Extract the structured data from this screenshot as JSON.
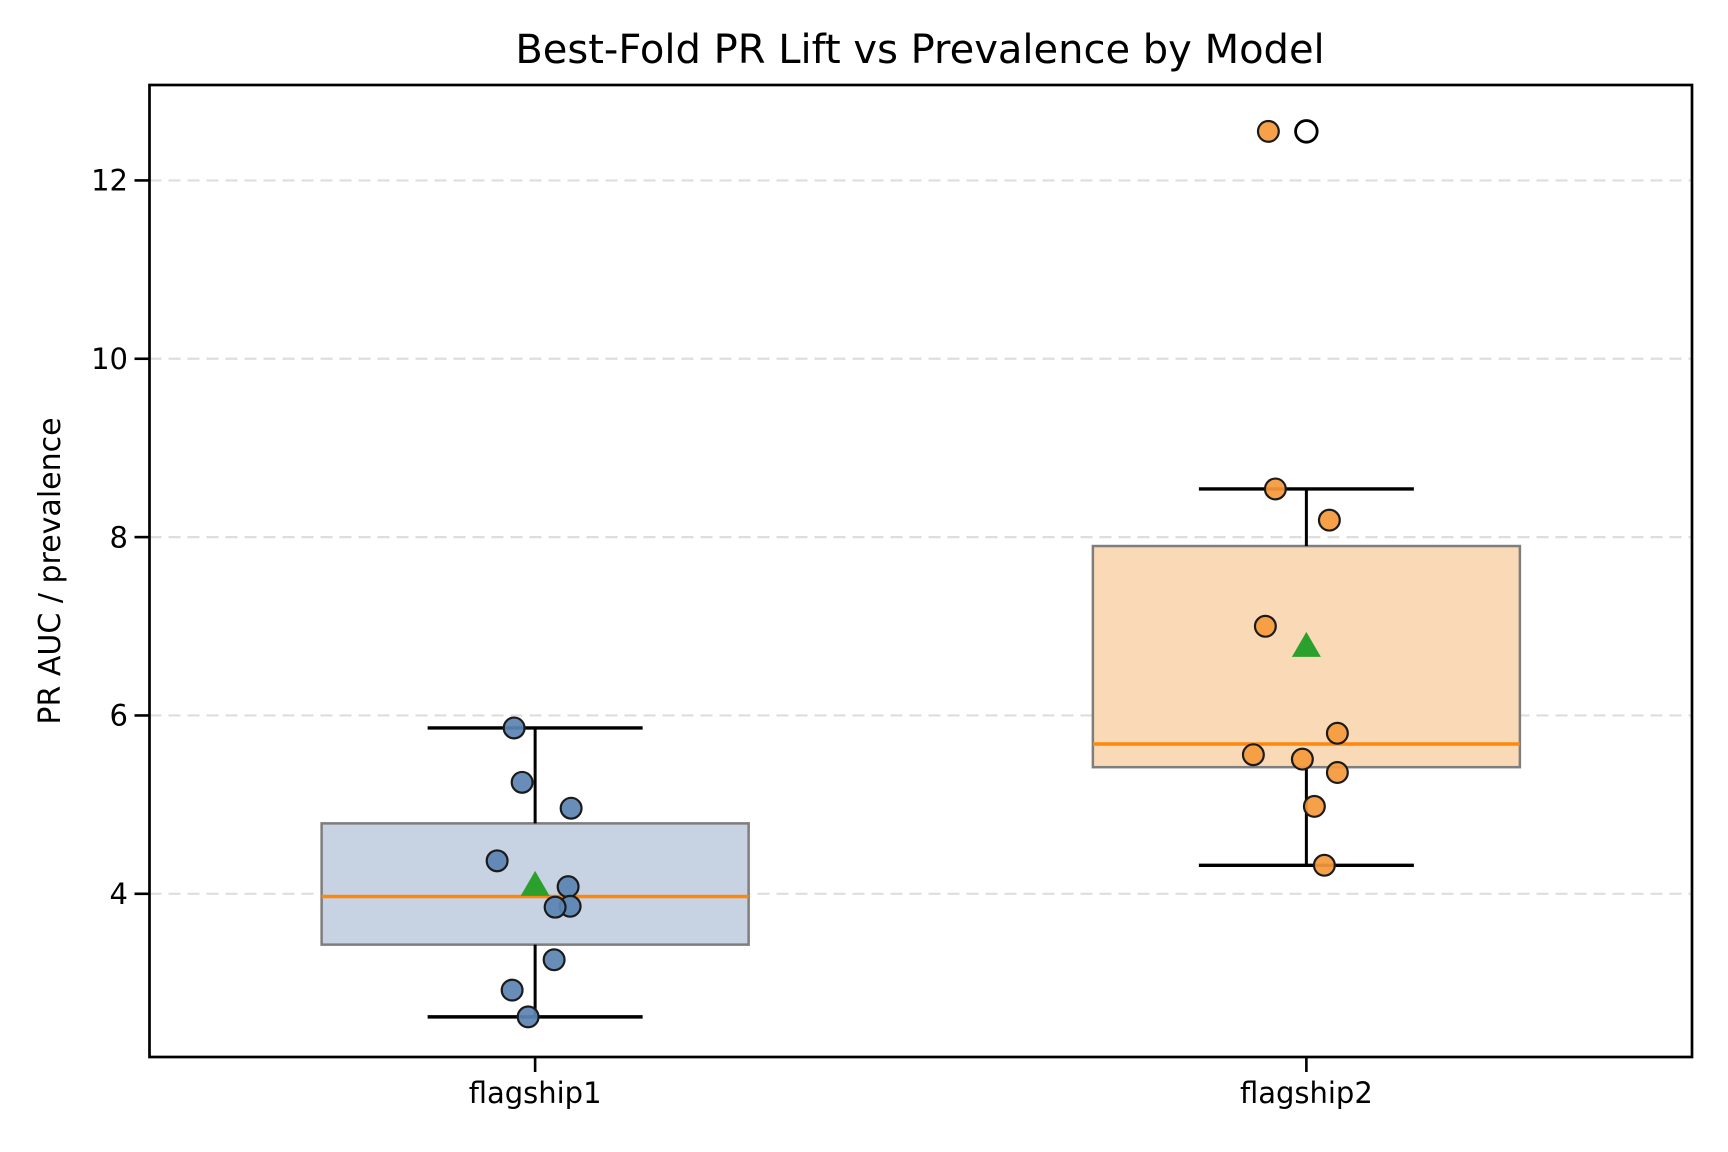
{
  "chart_data": {
    "type": "box",
    "title": "Best-Fold PR Lift vs Prevalence by Model",
    "xlabel": "",
    "ylabel": "PR AUC / prevalence",
    "categories": [
      "flagship1",
      "flagship2"
    ],
    "yticks": [
      4,
      6,
      8,
      10,
      12
    ],
    "ylim": [
      2.17,
      13.07
    ],
    "grid": "horizontal-dashed",
    "legend": "none",
    "series": [
      {
        "name": "flagship1",
        "marker_fill": "#5b84b3",
        "box_fill": "#c7d2e2",
        "points": [
          {
            "v": 5.86,
            "dx": -21
          },
          {
            "v": 5.25,
            "dx": -13
          },
          {
            "v": 4.96,
            "dx": 36
          },
          {
            "v": 4.37,
            "dx": -38
          },
          {
            "v": 4.08,
            "dx": 33
          },
          {
            "v": 3.86,
            "dx": 35
          },
          {
            "v": 3.85,
            "dx": 20
          },
          {
            "v": 3.26,
            "dx": 19
          },
          {
            "v": 2.92,
            "dx": -23
          },
          {
            "v": 2.62,
            "dx": -7
          }
        ],
        "box": {
          "whisker_low": 2.62,
          "q1": 3.43,
          "median": 3.97,
          "q3": 4.79,
          "whisker_high": 5.86,
          "mean": 4.1
        },
        "fliers": []
      },
      {
        "name": "flagship2",
        "marker_fill": "#f59a3c",
        "box_fill": "#fad9b6",
        "points": [
          {
            "v": 12.55,
            "dx": -38
          },
          {
            "v": 8.54,
            "dx": -31
          },
          {
            "v": 8.19,
            "dx": 23
          },
          {
            "v": 7.0,
            "dx": -41
          },
          {
            "v": 5.8,
            "dx": 31
          },
          {
            "v": 5.56,
            "dx": -53
          },
          {
            "v": 5.51,
            "dx": -4
          },
          {
            "v": 5.36,
            "dx": 31
          },
          {
            "v": 4.98,
            "dx": 8
          },
          {
            "v": 4.32,
            "dx": 18
          }
        ],
        "box": {
          "whisker_low": 4.32,
          "q1": 5.42,
          "median": 5.68,
          "q3": 7.9,
          "whisker_high": 8.54,
          "mean": 6.78
        },
        "fliers": [
          12.55
        ]
      }
    ],
    "colors": {
      "median_line": "#ff870e",
      "mean_marker": "#2ca02c",
      "box_edge": "#7e7e7e",
      "whisker": "#000000",
      "point_edge": "#1b1b1b",
      "grid": "#dedede",
      "spine": "#000000",
      "flier_fill": "#ffffff"
    }
  }
}
